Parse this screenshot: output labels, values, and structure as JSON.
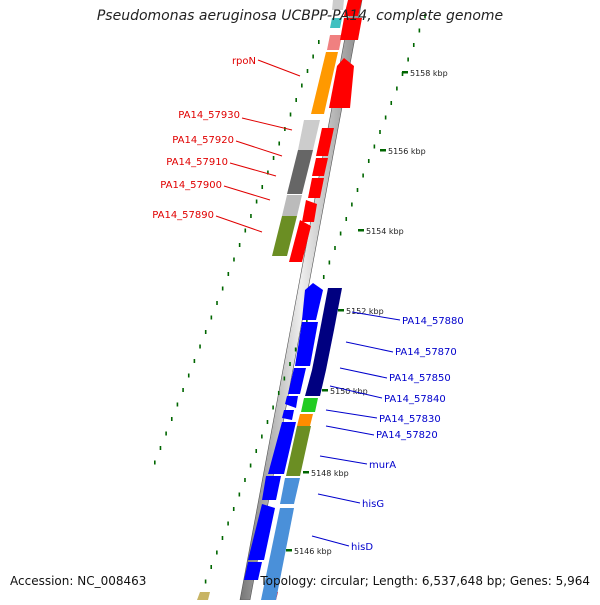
{
  "header": {
    "title": "Pseudomonas aeruginosa UCBPP-PA14, complete genome"
  },
  "footer": {
    "accession": "Accession: NC_008463",
    "topology": "Topology: circular; Length: 6,537,648 bp; Genes: 5,964"
  },
  "scale_ticks": [
    "5158 kbp",
    "5156 kbp",
    "5154 kbp",
    "5152 kbp",
    "5150 kbp",
    "5148 kbp",
    "5146 kbp"
  ],
  "gene_labels_left": [
    "rpoN",
    "PA14_57930",
    "PA14_57920",
    "PA14_57910",
    "PA14_57900",
    "PA14_57890"
  ],
  "gene_labels_right": [
    "PA14_57880",
    "PA14_57870",
    "PA14_57850",
    "PA14_57840",
    "PA14_57830",
    "PA14_57820",
    "murA",
    "hisG",
    "hisD"
  ],
  "colors": {
    "label_left": "#e00000",
    "label_right": "#0000cc",
    "forward_gene": "#ff0000",
    "reverse_gene": "#0000ff",
    "tick": "#006600"
  }
}
